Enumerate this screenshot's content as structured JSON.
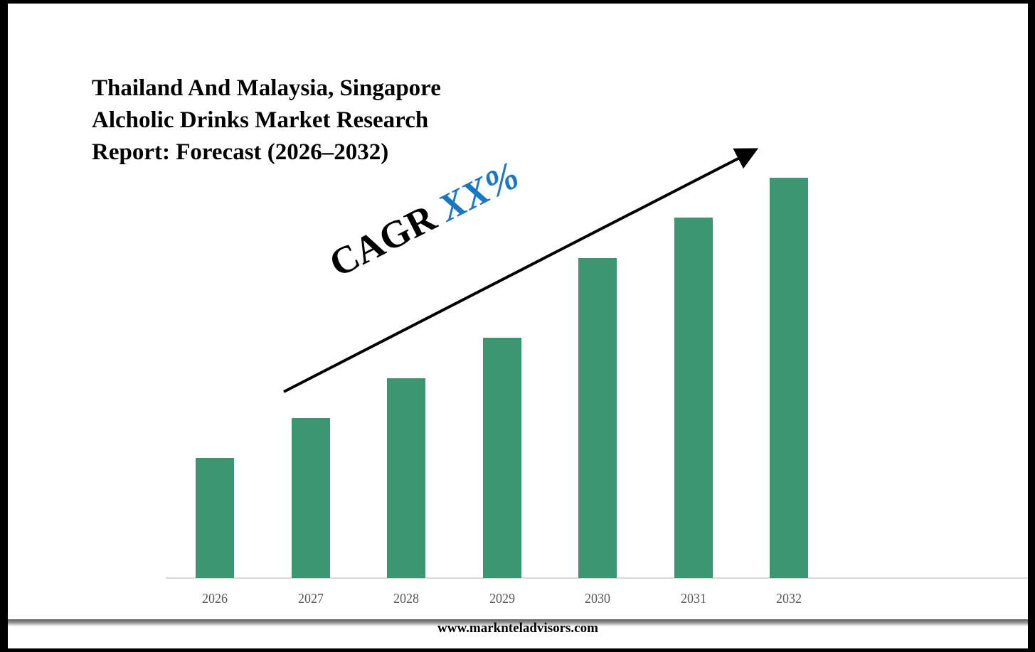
{
  "title": {
    "lines": [
      "Thailand And Malaysia, Singapore",
      "Alcholic Drinks Market Research",
      "Report: Forecast (2026–2032)"
    ]
  },
  "annotation": {
    "cagr_label": "CAGR",
    "cagr_value": "XX%"
  },
  "footer": {
    "website": "www.marknteladvisors.com"
  },
  "colors": {
    "bar": "#3c9672",
    "cagr_value": "#1a78c2",
    "axis_line": "#d9d9d9",
    "tick_text": "#595959"
  },
  "chart_data": {
    "type": "bar",
    "title": "Thailand And Malaysia, Singapore Alcholic Drinks Market Research Report: Forecast (2026–2032)",
    "categories": [
      "2026",
      "2027",
      "2028",
      "2029",
      "2030",
      "2031",
      "2032"
    ],
    "values": [
      30,
      40,
      50,
      60,
      80,
      90,
      100
    ],
    "xlabel": "",
    "ylabel": "",
    "ylim": [
      0,
      100
    ],
    "grid": false,
    "legend": null,
    "annotations": [
      "CAGR XX%",
      "upward trend arrow"
    ],
    "note": "Bar heights are relative (no y-axis shown); values estimated from pixel heights normalized to 2032 = 100"
  }
}
